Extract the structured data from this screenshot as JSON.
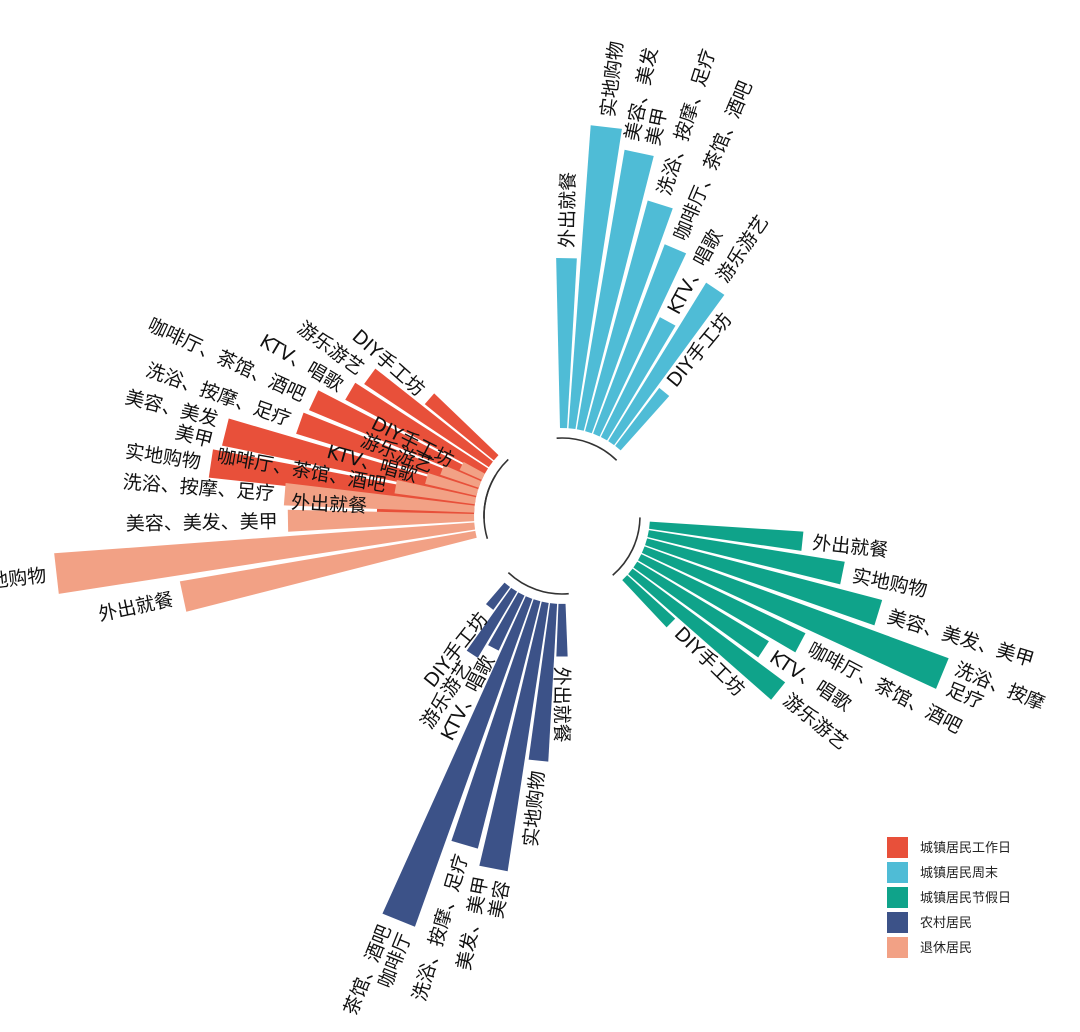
{
  "chart_data": {
    "type": "bar",
    "layout": "radial",
    "title": "",
    "legend_position": "bottom-right",
    "series": [
      {
        "name": "城镇居民工作日",
        "color": "#E8503A",
        "categories": [
          "外出就餐",
          "实地购物",
          "美容、美发、美甲",
          "洗浴、按摩、足疗",
          "咖啡厅、茶馆、酒吧",
          "KTV、唱歌",
          "游乐游艺",
          "DIY手工坊"
        ],
        "label_lines": [
          [
            "外出就餐"
          ],
          [
            "实地购物"
          ],
          [
            "美容、美发",
            "美甲"
          ],
          [
            "洗浴、按摩、足疗"
          ],
          [
            "咖啡厅、茶馆、酒吧"
          ],
          [
            "KTV、唱歌"
          ],
          [
            "游乐游艺"
          ],
          [
            "DIY手工坊"
          ]
        ],
        "values": [
          24,
          66,
          64,
          47,
          46,
          39,
          37,
          22
        ]
      },
      {
        "name": "城镇居民周末",
        "color": "#4FBCD6",
        "categories": [
          "外出就餐",
          "实地购物",
          "美容、美发、美甲",
          "洗浴、按摩、足疗",
          "咖啡厅、茶馆、酒吧",
          "KTV、唱歌",
          "游乐游艺",
          "DIY手工坊"
        ],
        "label_lines": [
          [
            "外出就餐"
          ],
          [
            "实地购物"
          ],
          [
            "美容、美发",
            "美甲"
          ],
          [
            "洗浴、按摩、足疗"
          ],
          [
            "咖啡厅、茶馆、酒吧"
          ],
          [
            "KTV、唱歌"
          ],
          [
            "游乐游艺"
          ],
          [
            "DIY手工坊"
          ]
        ],
        "values": [
          42,
          75,
          70,
          59,
          50,
          33,
          46,
          18
        ]
      },
      {
        "name": "城镇居民节假日",
        "color": "#0FA38A",
        "categories": [
          "外出就餐",
          "实地购物",
          "美容、美发、美甲",
          "洗浴、按摩、足疗",
          "咖啡厅、茶馆、酒吧",
          "KTV、唱歌",
          "游乐游艺",
          "DIY手工坊"
        ],
        "label_lines": [
          [
            "外出就餐"
          ],
          [
            "实地购物"
          ],
          [
            "美容、美发、美甲"
          ],
          [
            "洗浴、按摩",
            "足疗"
          ],
          [
            "咖啡厅、茶馆、酒吧"
          ],
          [
            "KTV、唱歌"
          ],
          [
            "游乐游艺"
          ],
          [
            "DIY手工坊"
          ]
        ],
        "values": [
          38,
          49,
          60,
          80,
          45,
          38,
          47,
          16
        ]
      },
      {
        "name": "农村居民",
        "color": "#3C5288",
        "categories": [
          "外出就餐",
          "实地购物",
          "美容、美发、美甲",
          "洗浴、按摩、足疗",
          "咖啡厅、茶馆、酒吧",
          "KTV、唱歌",
          "游乐游艺",
          "DIY手工坊"
        ],
        "label_lines": [
          [
            "外出就餐"
          ],
          [
            "实地购物"
          ],
          [
            "美发、美甲",
            "美容"
          ],
          [
            "洗浴、按摩、足疗"
          ],
          [
            "茶馆、酒吧",
            "咖啡厅"
          ],
          [
            "KTV、唱歌"
          ],
          [
            "游乐游艺"
          ],
          [
            "DIY手工坊"
          ]
        ],
        "values": [
          13,
          39,
          67,
          63,
          86,
          15,
          19,
          7
        ]
      },
      {
        "name": "退休居民",
        "color": "#F2A185",
        "categories": [
          "外出就餐",
          "实地购物",
          "美容、美发、美甲",
          "洗浴、按摩、足疗",
          "咖啡厅、茶馆、酒吧",
          "KTV、唱歌",
          "游乐游艺",
          "DIY手工坊"
        ],
        "label_lines": [
          [
            "外出就餐"
          ],
          [
            "实地购物"
          ],
          [
            "美容、美发、美甲"
          ],
          [
            "洗浴、按摩、足疗"
          ],
          [
            "咖啡厅、茶馆、酒吧"
          ],
          [
            "KTV、唱歌"
          ],
          [
            "游乐游艺"
          ],
          [
            "DIY手工坊"
          ]
        ],
        "values": [
          74,
          104,
          46,
          47,
          20,
          13,
          10,
          6
        ]
      }
    ]
  }
}
